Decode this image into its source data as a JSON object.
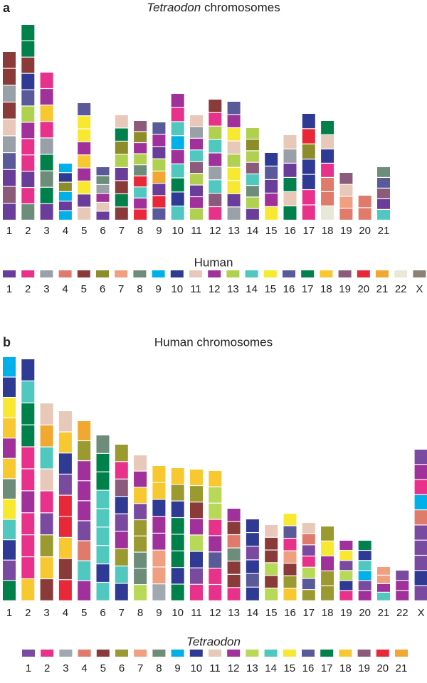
{
  "panel_a": {
    "letter": "a",
    "title": {
      "italic": "Tetraodon",
      "text": "chromosomes"
    },
    "chromosomes": [
      {
        "label": "1",
        "length": 237,
        "bands": [
          4,
          4,
          2,
          4,
          10,
          2,
          15,
          0,
          18,
          0
        ]
      },
      {
        "label": "2",
        "length": 275,
        "bands": [
          16,
          16,
          4,
          9,
          15,
          12,
          11,
          1,
          1,
          0,
          1,
          7
        ]
      },
      {
        "label": "3",
        "length": 208,
        "bands": [
          1,
          11,
          17,
          1,
          2,
          16,
          7,
          16,
          0
        ]
      },
      {
        "label": "4",
        "length": 80,
        "bands": [
          8,
          9,
          5,
          8,
          0,
          8
        ]
      },
      {
        "label": "5",
        "length": 165,
        "bands": [
          15,
          14,
          14,
          11,
          17,
          11,
          14,
          0,
          10
        ]
      },
      {
        "label": "6",
        "length": 75,
        "bands": [
          15,
          7,
          2,
          11,
          10,
          0
        ]
      },
      {
        "label": "7",
        "length": 148,
        "bands": [
          10,
          16,
          5,
          12,
          0,
          4,
          16,
          4
        ]
      },
      {
        "label": "8",
        "length": 140,
        "bands": [
          18,
          5,
          11,
          12,
          7,
          19,
          13,
          11,
          19
        ]
      },
      {
        "label": "9",
        "length": 138,
        "bands": [
          15,
          11,
          0,
          12,
          20,
          0,
          19,
          15
        ]
      },
      {
        "label": "10",
        "length": 178,
        "bands": [
          11,
          1,
          13,
          8,
          11,
          13,
          16,
          9,
          13
        ]
      },
      {
        "label": "11",
        "length": 148,
        "bands": [
          10,
          2,
          11,
          13,
          18,
          12,
          0,
          11,
          12
        ]
      },
      {
        "label": "12",
        "length": 170,
        "bands": [
          4,
          1,
          12,
          13,
          11,
          2,
          13,
          18,
          1
        ]
      },
      {
        "label": "13",
        "length": 167,
        "bands": [
          15,
          11,
          14,
          10,
          12,
          14,
          14,
          0,
          2
        ]
      },
      {
        "label": "14",
        "length": 130,
        "bands": [
          12,
          5,
          12,
          18,
          13,
          7,
          12,
          0
        ]
      },
      {
        "label": "15",
        "length": 95,
        "bands": [
          9,
          15,
          0,
          11,
          14
        ]
      },
      {
        "label": "16",
        "length": 120,
        "bands": [
          10,
          2,
          0,
          16,
          10,
          16
        ]
      },
      {
        "label": "17",
        "length": 150,
        "bands": [
          9,
          19,
          5,
          9,
          9,
          1,
          1
        ]
      },
      {
        "label": "18",
        "length": 140,
        "bands": [
          16,
          10,
          9,
          1,
          3,
          3,
          21
        ]
      },
      {
        "label": "19",
        "length": 67,
        "bands": [
          18,
          10,
          6,
          3
        ]
      },
      {
        "label": "20",
        "length": 35,
        "bands": [
          3,
          3
        ]
      },
      {
        "label": "21",
        "length": 75,
        "bands": [
          7,
          15,
          18,
          0,
          13
        ]
      }
    ],
    "legend": {
      "title": "Human",
      "items": [
        {
          "label": "1",
          "color": "#6a3d9a"
        },
        {
          "label": "2",
          "color": "#e8318a"
        },
        {
          "label": "3",
          "color": "#9aa0a8"
        },
        {
          "label": "4",
          "color": "#e07a6a"
        },
        {
          "label": "5",
          "color": "#8b3a3a"
        },
        {
          "label": "6",
          "color": "#8c8c2a"
        },
        {
          "label": "7",
          "color": "#f0a080"
        },
        {
          "label": "8",
          "color": "#6e8c7a"
        },
        {
          "label": "9",
          "color": "#00b0e8"
        },
        {
          "label": "10",
          "color": "#2e3a94"
        },
        {
          "label": "11",
          "color": "#e8c8b8"
        },
        {
          "label": "12",
          "color": "#a0309a"
        },
        {
          "label": "13",
          "color": "#b0d050"
        },
        {
          "label": "14",
          "color": "#50c8c0"
        },
        {
          "label": "15",
          "color": "#f8e830"
        },
        {
          "label": "16",
          "color": "#5a5a9a"
        },
        {
          "label": "17",
          "color": "#00804a"
        },
        {
          "label": "18",
          "color": "#f8c830"
        },
        {
          "label": "19",
          "color": "#8c5a7a"
        },
        {
          "label": "20",
          "color": "#e82838"
        },
        {
          "label": "21",
          "color": "#f0a830"
        },
        {
          "label": "22",
          "color": "#e8e8d8"
        },
        {
          "label": "X",
          "color": "#8c8070"
        }
      ]
    }
  },
  "panel_b": {
    "letter": "b",
    "title": {
      "text": "Human chromosomes"
    },
    "chromosomes": [
      {
        "label": "1",
        "length": 343,
        "bands": [
          8,
          9,
          14,
          17,
          11,
          17,
          7,
          14,
          13,
          9,
          0,
          16
        ]
      },
      {
        "label": "2",
        "length": 340,
        "bands": [
          9,
          13,
          16,
          16,
          1,
          1,
          11,
          1,
          1,
          1,
          17
        ]
      },
      {
        "label": "3",
        "length": 278,
        "bands": [
          10,
          20,
          13,
          10,
          1,
          0,
          5,
          17,
          4
        ]
      },
      {
        "label": "4",
        "length": 267,
        "bands": [
          10,
          17,
          9,
          0,
          19,
          19,
          17,
          4,
          19
        ]
      },
      {
        "label": "5",
        "length": 253,
        "bands": [
          20,
          5,
          11,
          11,
          11,
          0,
          3,
          13,
          11
        ]
      },
      {
        "label": "6",
        "length": 233,
        "bands": [
          7,
          16,
          16,
          13,
          13,
          13,
          13,
          9,
          13
        ]
      },
      {
        "label": "7",
        "length": 220,
        "bands": [
          5,
          1,
          18,
          9,
          0,
          11,
          5,
          13,
          9
        ]
      },
      {
        "label": "8",
        "length": 205,
        "bands": [
          10,
          11,
          17,
          0,
          5,
          5,
          7,
          7,
          12
        ]
      },
      {
        "label": "9",
        "length": 190,
        "bands": [
          17,
          17,
          9,
          11,
          11,
          6,
          6,
          2
        ]
      },
      {
        "label": "10",
        "length": 187,
        "bands": [
          17,
          5,
          9,
          16,
          16,
          16,
          9,
          16
        ]
      },
      {
        "label": "11",
        "length": 185,
        "bands": [
          17,
          5,
          4,
          11,
          12,
          9,
          0,
          1
        ]
      },
      {
        "label": "12",
        "length": 183,
        "bands": [
          17,
          12,
          12,
          1,
          11,
          15,
          1,
          1
        ]
      },
      {
        "label": "13",
        "length": 130,
        "bands": [
          11,
          4,
          3,
          7,
          4,
          4,
          1
        ]
      },
      {
        "label": "14",
        "length": 115,
        "bands": [
          9,
          9,
          0,
          9,
          15,
          9
        ]
      },
      {
        "label": "15",
        "length": 107,
        "bands": [
          10,
          4,
          4,
          12,
          4,
          12
        ]
      },
      {
        "label": "16",
        "length": 123,
        "bands": [
          14,
          15,
          1,
          6,
          4,
          5,
          17
        ]
      },
      {
        "label": "17",
        "length": 110,
        "bands": [
          10,
          3,
          0,
          1,
          12,
          15,
          5
        ]
      },
      {
        "label": "18",
        "length": 105,
        "bands": [
          5,
          14,
          11,
          5,
          5
        ]
      },
      {
        "label": "19",
        "length": 85,
        "bands": [
          11,
          14,
          0,
          12,
          9,
          1
        ]
      },
      {
        "label": "20",
        "length": 85,
        "bands": [
          16,
          9,
          13,
          8,
          0,
          11
        ]
      },
      {
        "label": "21",
        "length": 48,
        "bands": [
          6,
          6,
          11,
          13
        ]
      },
      {
        "label": "22",
        "length": 43,
        "bands": [
          0,
          11,
          11
        ]
      },
      {
        "label": "X",
        "length": 213,
        "bands": [
          0,
          11,
          1,
          8,
          3,
          0,
          0,
          0,
          9,
          0
        ]
      }
    ],
    "legend": {
      "title": {
        "italic": "Tetraodon"
      },
      "items": [
        {
          "label": "1",
          "color": "#7a4aa0"
        },
        {
          "label": "2",
          "color": "#e8318a"
        },
        {
          "label": "3",
          "color": "#a0a8b0"
        },
        {
          "label": "4",
          "color": "#e07a6a"
        },
        {
          "label": "5",
          "color": "#8b3a3a"
        },
        {
          "label": "6",
          "color": "#9a9a30"
        },
        {
          "label": "7",
          "color": "#f0a080"
        },
        {
          "label": "8",
          "color": "#6e8c7a"
        },
        {
          "label": "9",
          "color": "#00b0e8"
        },
        {
          "label": "10",
          "color": "#2e3a94"
        },
        {
          "label": "11",
          "color": "#e8c8b8"
        },
        {
          "label": "12",
          "color": "#a0309a"
        },
        {
          "label": "13",
          "color": "#b8d858"
        },
        {
          "label": "14",
          "color": "#50c8c0"
        },
        {
          "label": "15",
          "color": "#f8e830"
        },
        {
          "label": "16",
          "color": "#5a5a9a"
        },
        {
          "label": "17",
          "color": "#00804a"
        },
        {
          "label": "18",
          "color": "#f8c830"
        },
        {
          "label": "19",
          "color": "#8c5a7a"
        },
        {
          "label": "20",
          "color": "#e82838"
        },
        {
          "label": "21",
          "color": "#f0a830"
        }
      ]
    }
  }
}
